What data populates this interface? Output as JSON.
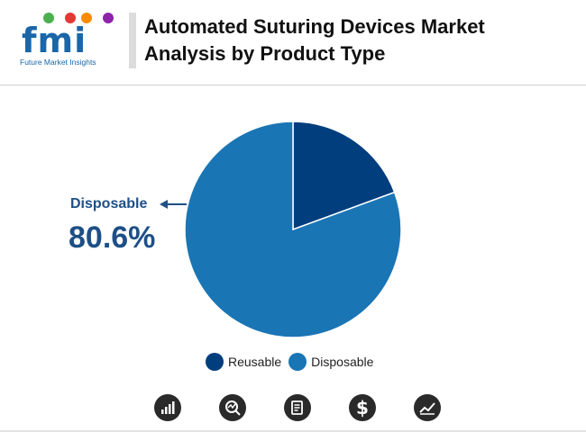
{
  "header": {
    "logo_letters": "fmi",
    "logo_subtitle": "Future Market Insights",
    "title": "Automated Suturing Devices Market Analysis by Product Type"
  },
  "chart_data": {
    "type": "pie",
    "categories": [
      "Reusable",
      "Disposable"
    ],
    "values": [
      19.4,
      80.6
    ],
    "colors": [
      "#003e7e",
      "#1a75b5"
    ],
    "title": "",
    "callout": {
      "label": "Disposable",
      "value": "80.6%"
    },
    "legend": [
      "Reusable",
      "Disposable"
    ],
    "legend_placement": "bottom"
  },
  "footer_icons": [
    "bar-chart-icon",
    "search-chart-icon",
    "report-icon",
    "dollar-icon",
    "trend-chart-icon"
  ],
  "logo_colors": [
    "#4caf50",
    "#e53935",
    "#fb8c00",
    "#8e24aa"
  ]
}
